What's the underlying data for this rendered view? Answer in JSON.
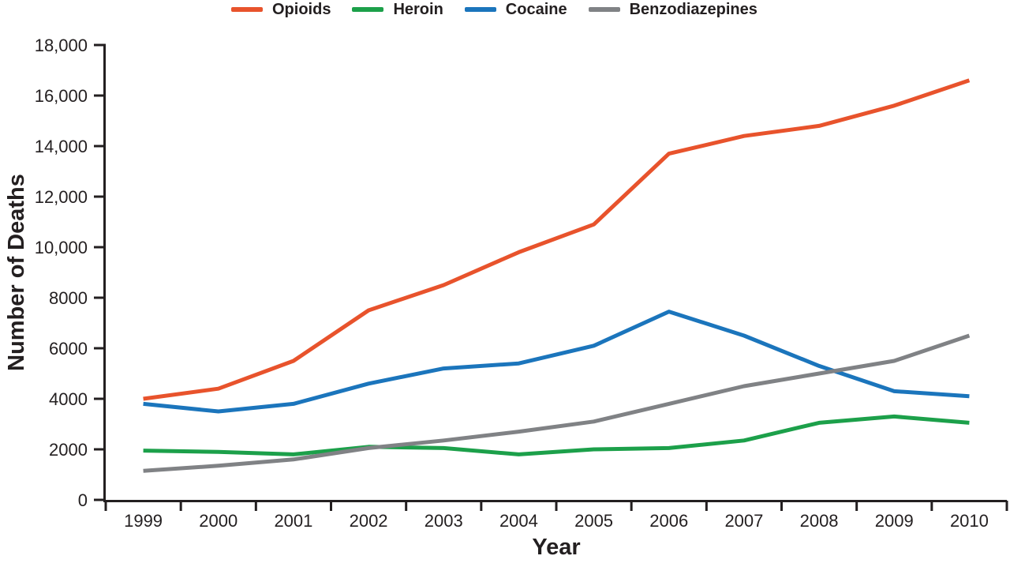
{
  "chart_data": {
    "type": "line",
    "title": "",
    "xlabel": "Year",
    "ylabel": "Number of Deaths",
    "x": [
      "1999",
      "2000",
      "2001",
      "2002",
      "2003",
      "2004",
      "2005",
      "2006",
      "2007",
      "2008",
      "2009",
      "2010"
    ],
    "series": [
      {
        "name": "Opioids",
        "color": "#E8532C",
        "values": [
          4000,
          4400,
          5500,
          7500,
          8500,
          9800,
          10900,
          13700,
          14400,
          14800,
          15600,
          16600
        ]
      },
      {
        "name": "Heroin",
        "color": "#1CA04A",
        "values": [
          1950,
          1900,
          1800,
          2100,
          2050,
          1800,
          2000,
          2050,
          2350,
          3050,
          3300,
          3050
        ]
      },
      {
        "name": "Cocaine",
        "color": "#1B75BC",
        "values": [
          3800,
          3500,
          3800,
          4600,
          5200,
          5400,
          6100,
          7450,
          6500,
          5300,
          4300,
          4100
        ]
      },
      {
        "name": "Benzodiazepines",
        "color": "#808285",
        "values": [
          1150,
          1350,
          1600,
          2050,
          2350,
          2700,
          3100,
          3800,
          4500,
          5000,
          5500,
          6500
        ]
      }
    ],
    "ylim": [
      0,
      18000
    ],
    "ytick_values": [
      0,
      2000,
      4000,
      6000,
      8000,
      10000,
      12000,
      14000,
      16000,
      18000
    ],
    "ytick_labels": [
      "0",
      "2000",
      "4000",
      "6000",
      "8000",
      "10,000",
      "12,000",
      "14,000",
      "16,000",
      "18,000"
    ],
    "grid": false,
    "legend_position": "top",
    "axis_color": "#231F20"
  }
}
